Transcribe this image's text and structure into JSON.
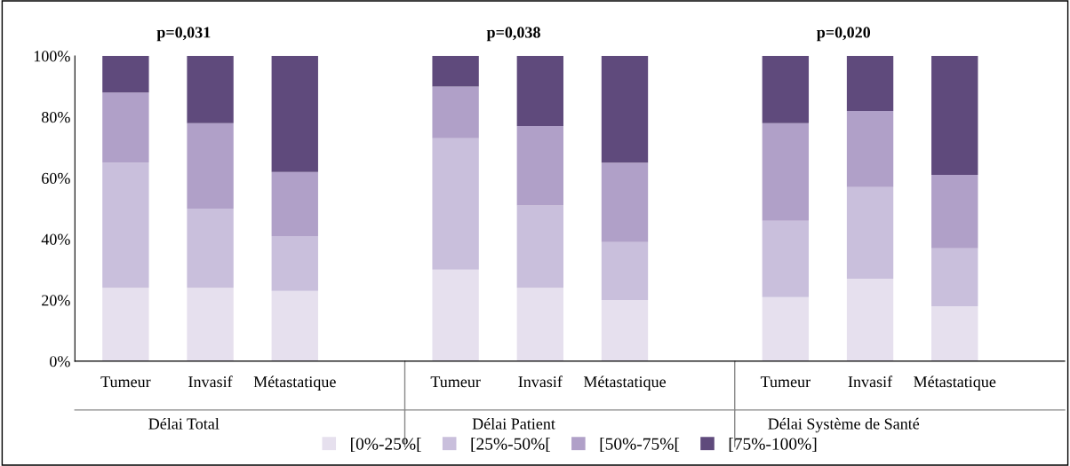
{
  "chart_data": [
    {
      "type": "bar",
      "stacked": true,
      "title": "p=0,031",
      "xlabel": "Délai Total",
      "categories": [
        "Tumeur",
        "Invasif",
        "Métastatique"
      ],
      "ylim": [
        0,
        100
      ],
      "yticks": [
        {
          "value": 0,
          "label": "0%"
        },
        {
          "value": 20,
          "label": "20%"
        },
        {
          "value": 40,
          "label": "40%"
        },
        {
          "value": 60,
          "label": "60%"
        },
        {
          "value": 80,
          "label": "80%"
        },
        {
          "value": 100,
          "label": "100%"
        }
      ],
      "grid": false,
      "series": [
        {
          "color": "#e6e0ee",
          "values": [
            24,
            24,
            23
          ]
        },
        {
          "color": "#c9bfdc",
          "values": [
            41,
            26,
            18
          ]
        },
        {
          "color": "#b0a0c8",
          "values": [
            23,
            28,
            21
          ]
        },
        {
          "color": "#5f4a7c",
          "values": [
            12,
            22,
            38
          ]
        }
      ]
    },
    {
      "type": "bar",
      "stacked": true,
      "title": "p=0,038",
      "xlabel": "Délai Patient",
      "categories": [
        "Tumeur",
        "Invasif",
        "Métastatique"
      ],
      "ylim": [
        0,
        100
      ],
      "tick_labels": "x",
      "grid": false,
      "legend": "bottom",
      "series": [
        {
          "name": "[0%-25%[",
          "color": "#e6e0ee",
          "values": [
            30,
            24,
            20
          ]
        },
        {
          "name": "[25%-50%[",
          "color": "#c9bfdc",
          "values": [
            43,
            27,
            19
          ]
        },
        {
          "name": "[50%-75%[",
          "color": "#b0a0c8",
          "values": [
            17,
            26,
            26
          ]
        },
        {
          "name": "[75%-100%]",
          "color": "#5f4a7c",
          "values": [
            10,
            23,
            35
          ]
        }
      ]
    },
    {
      "type": "bar",
      "stacked": true,
      "title": "p=0,020",
      "xlabel": "Délai Système de Santé",
      "categories": [
        "Tumeur",
        "Invasif",
        "Métastatique"
      ],
      "ylim": [
        0,
        100
      ],
      "tick_labels": "x",
      "grid": false,
      "series": [
        {
          "color": "#e6e0ee",
          "values": [
            21,
            27,
            18
          ]
        },
        {
          "color": "#c9bfdc",
          "values": [
            25,
            30,
            19
          ]
        },
        {
          "color": "#b0a0c8",
          "values": [
            32,
            25,
            24
          ]
        },
        {
          "color": "#5f4a7c",
          "values": [
            22,
            18,
            39
          ]
        }
      ]
    }
  ]
}
